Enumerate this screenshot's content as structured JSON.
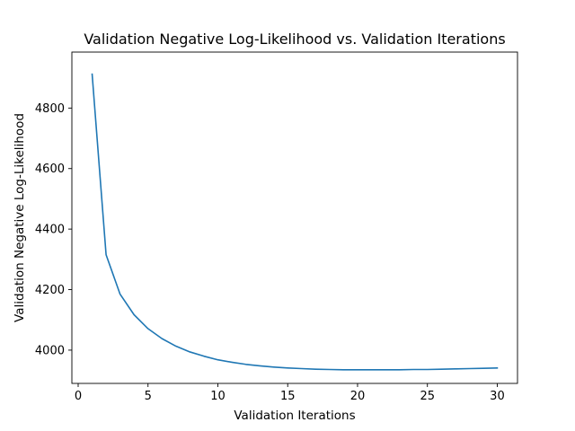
{
  "chart_data": {
    "type": "line",
    "title": "Validation Negative Log-Likelihood vs. Validation Iterations",
    "xlabel": "Validation Iterations",
    "ylabel": "Validation Negative Log-Likelihood",
    "xlim": [
      -0.45,
      31.45
    ],
    "ylim": [
      3890,
      4985
    ],
    "xticks": [
      0,
      5,
      10,
      15,
      20,
      25,
      30
    ],
    "yticks": [
      4000,
      4200,
      4400,
      4600,
      4800
    ],
    "grid": false,
    "legend": "none",
    "line_color": "#1f77b4",
    "series": [
      {
        "x": [
          1,
          2,
          3,
          4,
          5,
          6,
          7,
          8,
          9,
          10,
          11,
          12,
          13,
          14,
          15,
          16,
          17,
          18,
          19,
          20,
          21,
          22,
          23,
          24,
          25,
          26,
          27,
          28,
          29,
          30
        ],
        "values": [
          4912,
          4315,
          4185,
          4117,
          4071,
          4038,
          4013,
          3994,
          3980,
          3968,
          3960,
          3953,
          3948,
          3944,
          3941,
          3939,
          3937,
          3936,
          3935,
          3935,
          3935,
          3935,
          3935,
          3936,
          3936,
          3937,
          3938,
          3939,
          3940,
          3941
        ]
      }
    ]
  }
}
